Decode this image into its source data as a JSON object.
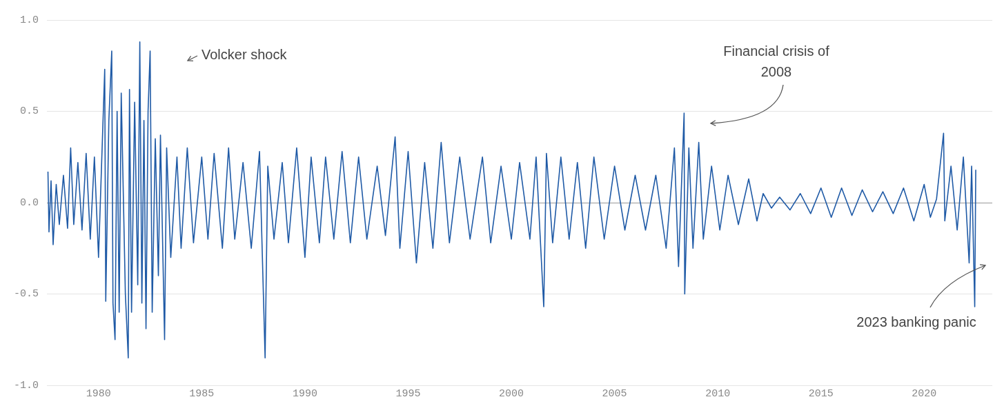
{
  "chart_data": {
    "type": "line",
    "x": [
      1977.55,
      1977.6,
      1977.7,
      1977.8,
      1977.95,
      1978.1,
      1978.3,
      1978.5,
      1978.65,
      1978.8,
      1979.0,
      1979.2,
      1979.4,
      1979.6,
      1979.8,
      1980.0,
      1980.3,
      1980.35,
      1980.5,
      1980.64,
      1980.7,
      1980.8,
      1980.9,
      1981.0,
      1981.1,
      1981.3,
      1981.44,
      1981.5,
      1981.6,
      1981.75,
      1981.9,
      1982.0,
      1982.1,
      1982.2,
      1982.3,
      1982.4,
      1982.5,
      1982.6,
      1982.75,
      1982.9,
      1983.0,
      1983.2,
      1983.3,
      1983.5,
      1983.8,
      1984.0,
      1984.3,
      1984.6,
      1985.0,
      1985.3,
      1985.6,
      1986.0,
      1986.3,
      1986.6,
      1987.0,
      1987.4,
      1987.8,
      1988.07,
      1988.2,
      1988.5,
      1988.9,
      1989.2,
      1989.6,
      1990.0,
      1990.3,
      1990.7,
      1991.0,
      1991.4,
      1991.8,
      1992.2,
      1992.6,
      1993.0,
      1993.5,
      1993.9,
      1994.37,
      1994.6,
      1995.0,
      1995.4,
      1995.8,
      1996.2,
      1996.6,
      1997.0,
      1997.5,
      1998.0,
      1998.6,
      1999.0,
      1999.5,
      2000.0,
      2000.4,
      2000.9,
      2001.2,
      2001.57,
      2001.7,
      2002.0,
      2002.4,
      2002.8,
      2003.2,
      2003.6,
      2004.0,
      2004.5,
      2005.0,
      2005.5,
      2006.0,
      2006.5,
      2007.0,
      2007.5,
      2007.9,
      2008.1,
      2008.37,
      2008.4,
      2008.6,
      2008.8,
      2009.08,
      2009.3,
      2009.7,
      2010.1,
      2010.5,
      2011.0,
      2011.5,
      2011.9,
      2012.2,
      2012.6,
      2013.0,
      2013.5,
      2014.0,
      2014.5,
      2015.0,
      2015.5,
      2016.0,
      2016.5,
      2017.0,
      2017.5,
      2018.0,
      2018.5,
      2019.0,
      2019.5,
      2020.0,
      2020.3,
      2020.6,
      2020.94,
      2021.0,
      2021.3,
      2021.6,
      2021.9,
      2022.18,
      2022.3,
      2022.45,
      2022.5
    ],
    "series": [
      {
        "color": "#1f5aa6",
        "values": [
          0.17,
          -0.16,
          0.12,
          -0.23,
          0.1,
          -0.12,
          0.15,
          -0.14,
          0.3,
          -0.12,
          0.22,
          -0.15,
          0.27,
          -0.2,
          0.25,
          -0.3,
          0.73,
          -0.54,
          0.45,
          0.83,
          -0.55,
          -0.75,
          0.5,
          -0.6,
          0.6,
          -0.5,
          -0.85,
          0.62,
          -0.6,
          0.55,
          -0.45,
          0.88,
          -0.55,
          0.45,
          -0.69,
          0.5,
          0.83,
          -0.6,
          0.35,
          -0.4,
          0.37,
          -0.75,
          0.3,
          -0.3,
          0.25,
          -0.25,
          0.3,
          -0.22,
          0.25,
          -0.2,
          0.27,
          -0.25,
          0.3,
          -0.2,
          0.22,
          -0.25,
          0.28,
          -0.85,
          0.2,
          -0.2,
          0.22,
          -0.22,
          0.3,
          -0.3,
          0.25,
          -0.22,
          0.25,
          -0.2,
          0.28,
          -0.22,
          0.25,
          -0.2,
          0.2,
          -0.18,
          0.36,
          -0.25,
          0.28,
          -0.33,
          0.22,
          -0.25,
          0.33,
          -0.22,
          0.25,
          -0.2,
          0.25,
          -0.22,
          0.2,
          -0.2,
          0.22,
          -0.2,
          0.25,
          -0.57,
          0.27,
          -0.22,
          0.25,
          -0.2,
          0.22,
          -0.25,
          0.25,
          -0.2,
          0.2,
          -0.15,
          0.15,
          -0.15,
          0.15,
          -0.25,
          0.3,
          -0.35,
          0.49,
          -0.5,
          0.3,
          -0.25,
          0.33,
          -0.2,
          0.2,
          -0.15,
          0.15,
          -0.12,
          0.13,
          -0.1,
          0.05,
          -0.03,
          0.03,
          -0.04,
          0.05,
          -0.06,
          0.08,
          -0.08,
          0.08,
          -0.07,
          0.07,
          -0.05,
          0.06,
          -0.06,
          0.08,
          -0.1,
          0.1,
          -0.08,
          0.02,
          0.38,
          -0.1,
          0.2,
          -0.15,
          0.25,
          -0.33,
          0.2,
          -0.57,
          0.18
        ]
      }
    ],
    "xlim": [
      1977.5,
      2023.3
    ],
    "xticks": [
      1980,
      1985,
      1990,
      1995,
      2000,
      2005,
      2010,
      2015,
      2020
    ],
    "ylim": [
      -1,
      1
    ],
    "yticks": [
      {
        "value": -1,
        "label": "-1.0"
      },
      {
        "value": -0.5,
        "label": "-0.5"
      },
      {
        "value": 0,
        "label": "0.0"
      },
      {
        "value": 0.5,
        "label": "0.5"
      },
      {
        "value": 1,
        "label": "1.0"
      }
    ],
    "grid": "y",
    "marker": "none",
    "line_style": "solid",
    "annotations": [
      "Volcker shock",
      "Financial crisis of\n2008",
      "2023 banking panic"
    ]
  }
}
